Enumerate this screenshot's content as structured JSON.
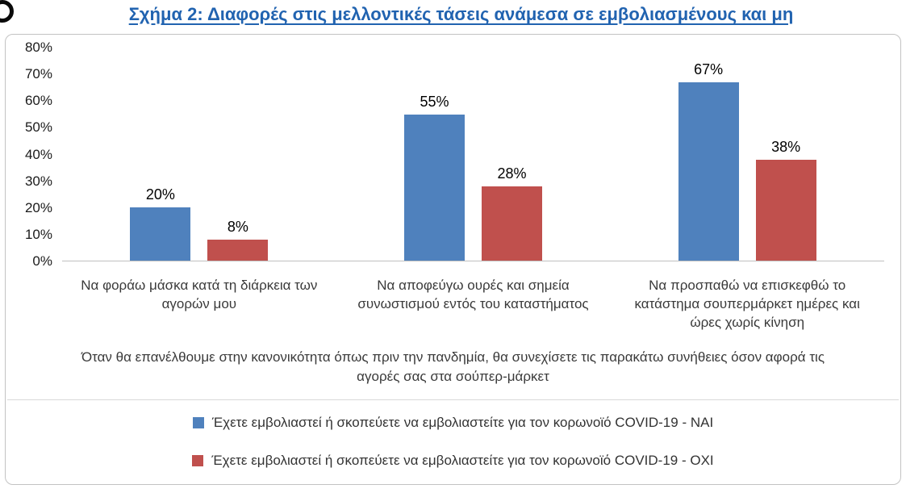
{
  "icons": {
    "corner_logo": "partial-circle-glyph"
  },
  "chart_data": {
    "type": "bar",
    "title": "Σχήμα 2: Διαφορές στις μελλοντικές τάσεις ανάμεσα σε εμβολιασμένους και μη",
    "categories": [
      "Να φοράω μάσκα κατά τη διάρκεια των αγορών μου",
      "Να αποφεύγω ουρές και σημεία συνωστισμού εντός του καταστήματος",
      "Να προσπαθώ να επισκεφθώ το κατάστημα σουπερμάρκετ ημέρες και ώρες χωρίς κίνηση"
    ],
    "series": [
      {
        "name": "Έχετε εμβολιαστεί ή σκοπεύετε να εμβολιαστείτε για τον κορωνοϊό COVID-19 - ΝΑΙ",
        "color": "#4F81BD",
        "values": [
          20,
          55,
          67
        ]
      },
      {
        "name": "Έχετε εμβολιαστεί ή σκοπεύετε να εμβολιαστείτε για τον κορωνοϊό COVID-19 - ΟΧΙ",
        "color": "#C0504D",
        "values": [
          8,
          28,
          38
        ]
      }
    ],
    "data_label_suffix": "%",
    "y_ticks": [
      "80%",
      "70%",
      "60%",
      "50%",
      "40%",
      "30%",
      "20%",
      "10%",
      "0%"
    ],
    "ylim": [
      0,
      80
    ],
    "grid": false,
    "legend_position": "bottom",
    "axis_note": "Όταν θα επανέλθουμε στην κανονικότητα όπως πριν την πανδημία, θα συνεχίσετε τις παρακάτω συνήθειες όσον αφορά τις αγορές σας στα σούπερ-μάρκετ",
    "colors": {
      "title": "#2163B0",
      "bar_yes": "#4F81BD",
      "bar_no": "#C0504D",
      "axis_line": "#BFBFBF",
      "text": "#3A3A3A"
    }
  }
}
